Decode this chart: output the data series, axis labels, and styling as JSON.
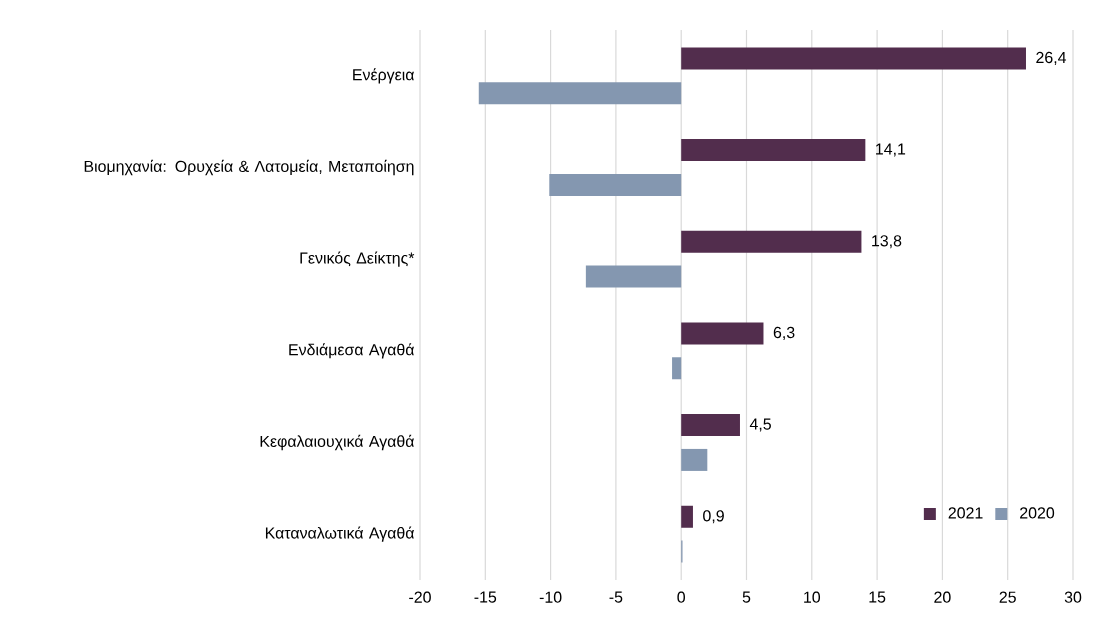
{
  "chart_data": {
    "type": "bar",
    "orientation": "horizontal",
    "categories": [
      "Ενέργεια",
      "Βιομηχανία: Ορυχεία & Λατομεία, Μεταποίηση",
      "Γενικός Δείκτης*",
      "Ενδιάμεσα Αγαθά",
      "Κεφαλαιουχικά Αγαθά",
      "Καταναλωτικά Αγαθά"
    ],
    "series": [
      {
        "name": "2021",
        "color": "#522d4d",
        "values": [
          26.4,
          14.1,
          13.8,
          6.3,
          4.5,
          0.9
        ],
        "value_labels": [
          "26,4",
          "14,1",
          "13,8",
          "6,3",
          "4,5",
          "0,9"
        ]
      },
      {
        "name": "2020",
        "color": "#8497b0",
        "values": [
          -15.5,
          -10.1,
          -7.3,
          -0.7,
          2.0,
          0.1
        ]
      }
    ],
    "xlim": [
      -20,
      30
    ],
    "xticks": [
      -20,
      -15,
      -10,
      -5,
      0,
      5,
      10,
      15,
      20,
      25,
      30
    ],
    "grid": "x",
    "legend": "bottom right"
  }
}
